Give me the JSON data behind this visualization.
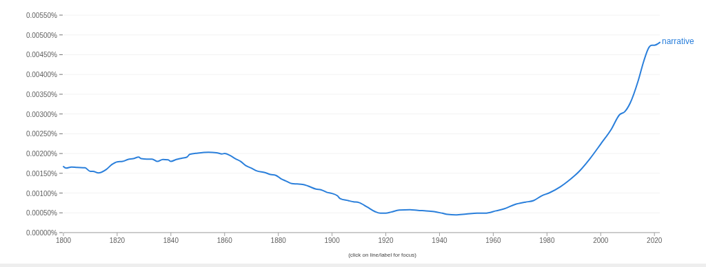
{
  "chart_data": {
    "type": "line",
    "annotations": [
      "(click on line/label for focus)"
    ],
    "x": [
      1800,
      1801,
      1803,
      1805,
      1808,
      1810,
      1811,
      1813,
      1816,
      1818,
      1820,
      1822,
      1824,
      1826,
      1828,
      1829,
      1831,
      1833,
      1835,
      1837,
      1839,
      1840,
      1842,
      1844,
      1846,
      1847,
      1850,
      1854,
      1857,
      1859,
      1860,
      1862,
      1864,
      1866,
      1868,
      1870,
      1872,
      1875,
      1877,
      1879,
      1881,
      1883,
      1885,
      1887,
      1889,
      1891,
      1894,
      1896,
      1898,
      1900,
      1902,
      1903,
      1906,
      1908,
      1910,
      1913,
      1916,
      1918,
      1920,
      1922,
      1925,
      1929,
      1932,
      1935,
      1938,
      1941,
      1943,
      1946,
      1950,
      1954,
      1957,
      1961,
      1964,
      1968,
      1972,
      1975,
      1978,
      1981,
      1985,
      1988,
      1992,
      1996,
      2000,
      2004,
      2007,
      2009,
      2011,
      2014,
      2016,
      2018,
      2019,
      2020,
      2022
    ],
    "series": [
      {
        "name": "narrative",
        "color": "#2a7fdb",
        "values": [
          0.00167,
          0.00163,
          0.00166,
          0.00165,
          0.00164,
          0.00155,
          0.00155,
          0.00151,
          0.0016,
          0.00172,
          0.00179,
          0.0018,
          0.00185,
          0.00187,
          0.00191,
          0.00187,
          0.00186,
          0.00186,
          0.0018,
          0.00185,
          0.00184,
          0.0018,
          0.00185,
          0.00188,
          0.00191,
          0.00198,
          0.00201,
          0.00203,
          0.00202,
          0.00199,
          0.002,
          0.00195,
          0.00187,
          0.0018,
          0.00169,
          0.00163,
          0.00156,
          0.00152,
          0.00147,
          0.00145,
          0.00136,
          0.0013,
          0.00124,
          0.00123,
          0.00122,
          0.00118,
          0.0011,
          0.00108,
          0.00102,
          0.00099,
          0.00093,
          0.00086,
          0.00081,
          0.00078,
          0.00076,
          0.00065,
          0.00053,
          0.00049,
          0.00049,
          0.00052,
          0.00057,
          0.00058,
          0.00056,
          0.00055,
          0.00053,
          0.00049,
          0.00046,
          0.00045,
          0.00047,
          0.00049,
          0.00049,
          0.00055,
          0.0006,
          0.00071,
          0.00077,
          0.00081,
          0.00093,
          0.00101,
          0.00116,
          0.00131,
          0.00155,
          0.00187,
          0.00224,
          0.00262,
          0.00298,
          0.00306,
          0.00328,
          0.00385,
          0.00433,
          0.00469,
          0.00474,
          0.00474,
          0.00481
        ]
      }
    ],
    "xlim": [
      1800,
      2022
    ],
    "xticks": [
      1800,
      1820,
      1840,
      1860,
      1880,
      1900,
      1920,
      1940,
      1960,
      1980,
      2000,
      2020
    ],
    "ylim": [
      0,
      0.0055
    ],
    "yticks": [
      {
        "value": 0,
        "label": "0.00000%"
      },
      {
        "value": 0.0005,
        "label": "0.00050%"
      },
      {
        "value": 0.001,
        "label": "0.00100%"
      },
      {
        "value": 0.0015,
        "label": "0.00150%"
      },
      {
        "value": 0.002,
        "label": "0.00200%"
      },
      {
        "value": 0.0025,
        "label": "0.00250%"
      },
      {
        "value": 0.003,
        "label": "0.00300%"
      },
      {
        "value": 0.0035,
        "label": "0.00350%"
      },
      {
        "value": 0.004,
        "label": "0.00400%"
      },
      {
        "value": 0.0045,
        "label": "0.00450%"
      },
      {
        "value": 0.005,
        "label": "0.00500%"
      },
      {
        "value": 0.0055,
        "label": "0.00550%"
      }
    ],
    "grid": "y",
    "legend": false,
    "marker": "none",
    "line_style": "solid"
  }
}
